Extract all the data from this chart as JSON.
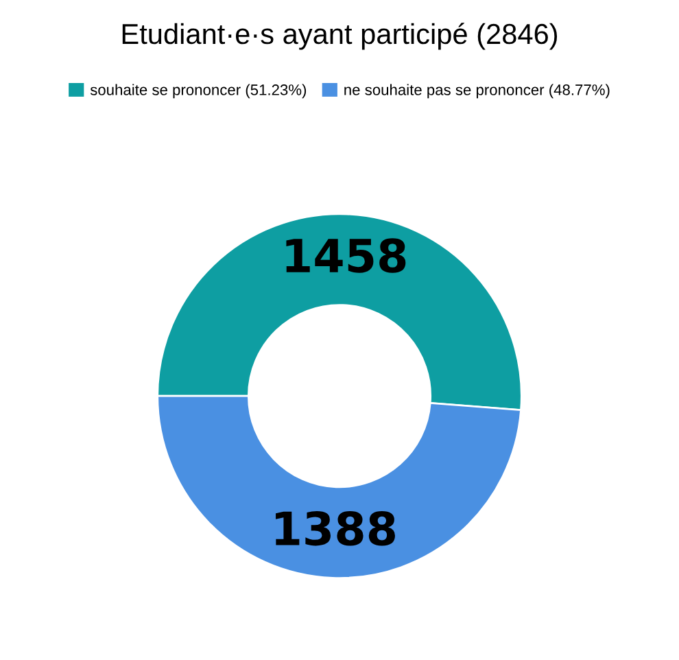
{
  "chart_data": {
    "type": "donut",
    "title": "Etudiant·e·s ayant participé (2846)",
    "categories": [
      "souhaite se prononcer (51.23%)",
      "ne souhaite pas se prononcer (48.77%)"
    ],
    "values": [
      1458,
      1388
    ],
    "colors": [
      "#0e9ea2",
      "#4a90e2"
    ],
    "data_labels": true,
    "legend": "top"
  }
}
